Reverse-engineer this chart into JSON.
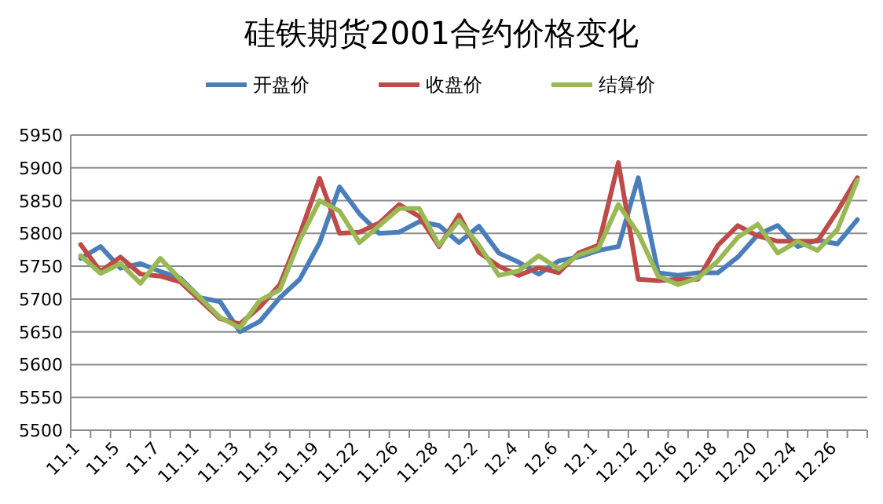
{
  "chart_data": {
    "type": "line",
    "title": "硅铁期货2001合约价格变化",
    "categories": [
      "11.1",
      null,
      "11.5",
      null,
      "11.7",
      null,
      "11.11",
      null,
      "11.13",
      null,
      "11.15",
      null,
      "11.19",
      null,
      "11.22",
      null,
      "11.26",
      null,
      "11.28",
      null,
      "12.2",
      null,
      "12.4",
      null,
      "12.6",
      null,
      "12.1",
      null,
      "12.12",
      null,
      "12.16",
      null,
      "12.18",
      null,
      "12.20",
      null,
      "12.24",
      null,
      "12.26",
      null
    ],
    "series": [
      {
        "name": "开盘价",
        "color": "#4a7ebb",
        "values": [
          5762,
          5780,
          5747,
          5754,
          5742,
          5732,
          5702,
          5696,
          5650,
          5666,
          5702,
          5730,
          5786,
          5871,
          5830,
          5800,
          5802,
          5818,
          5812,
          5786,
          5811,
          5770,
          5756,
          5738,
          5758,
          5764,
          5774,
          5780,
          5885,
          5740,
          5736,
          5740,
          5740,
          5764,
          5798,
          5812,
          5780,
          5790,
          5784,
          5821
        ]
      },
      {
        "name": "收盘价",
        "color": "#be4b48",
        "values": [
          5783,
          5742,
          5764,
          5738,
          5735,
          5726,
          5698,
          5670,
          5662,
          5688,
          5722,
          5798,
          5884,
          5800,
          5802,
          5816,
          5844,
          5826,
          5780,
          5828,
          5771,
          5750,
          5736,
          5748,
          5740,
          5770,
          5782,
          5908,
          5730,
          5728,
          5730,
          5730,
          5782,
          5812,
          5796,
          5788,
          5788,
          5788,
          5834,
          5885
        ]
      },
      {
        "name": "结算价",
        "color": "#98b954",
        "values": [
          5766,
          5739,
          5754,
          5724,
          5762,
          5730,
          5702,
          5672,
          5656,
          5698,
          5714,
          5790,
          5850,
          5834,
          5786,
          5812,
          5838,
          5838,
          5782,
          5820,
          5782,
          5736,
          5743,
          5766,
          5746,
          5767,
          5777,
          5844,
          5800,
          5735,
          5722,
          5732,
          5758,
          5794,
          5814,
          5770,
          5788,
          5774,
          5806,
          5881
        ]
      }
    ],
    "ylim": [
      5500,
      5950
    ],
    "yticks": [
      5500,
      5550,
      5600,
      5650,
      5700,
      5750,
      5800,
      5850,
      5900,
      5950
    ],
    "grid": "y",
    "legend": "top",
    "marker": "none",
    "line_style": "solid"
  }
}
